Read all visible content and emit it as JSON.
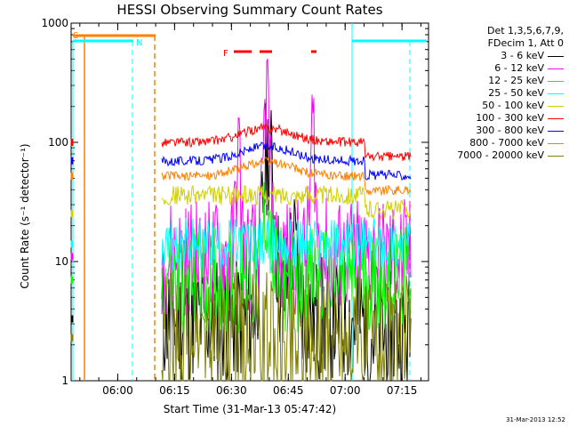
{
  "chart_data": {
    "type": "line",
    "title": "HESSI Observing Summary Count Rates",
    "xlabel": "Start Time (31-Mar-13 05:47:42)",
    "ylabel": "Count Rate (s⁻¹ detector⁻¹)",
    "ylog": true,
    "ylim": [
      1,
      1000
    ],
    "xlim": [
      "05:47:42",
      "07:22:00"
    ],
    "x_ticks": [
      "06:00",
      "06:15",
      "06:30",
      "06:45",
      "07:00",
      "07:15"
    ],
    "y_ticks": [
      "1",
      "10",
      "100",
      "1000"
    ],
    "legend_header": [
      "Det 1,3,5,6,7,9,",
      "FDecim 1, Att 0"
    ],
    "legend_position": "right",
    "series": [
      {
        "name": "3 - 6 keV",
        "color": "#000000",
        "level": 3.3
      },
      {
        "name": "6 - 12 keV",
        "color": "#ff00ff",
        "level": 11
      },
      {
        "name": "12 - 25 keV",
        "color": "#00ff00",
        "level": 7
      },
      {
        "name": "25 - 50 keV",
        "color": "#00ffff",
        "level": 14
      },
      {
        "name": "50 - 100 keV",
        "color": "#d0d000",
        "level": 36
      },
      {
        "name": "100 - 300 keV",
        "color": "#ff0000",
        "level": 100
      },
      {
        "name": "300 - 800 keV",
        "color": "#0000ff",
        "level": 70
      },
      {
        "name": "800 - 7000 keV",
        "color": "#ff8000",
        "level": 52
      },
      {
        "name": "7000 - 20000 keV",
        "color": "#808000",
        "level": 2.3
      }
    ],
    "flags": [
      {
        "label": "S",
        "color": "#ff8000"
      },
      {
        "label": "N",
        "color": "#00ffff"
      },
      {
        "label": "F",
        "color": "#ff0000"
      }
    ],
    "timestamp": "31-Mar-2013 12:52"
  }
}
